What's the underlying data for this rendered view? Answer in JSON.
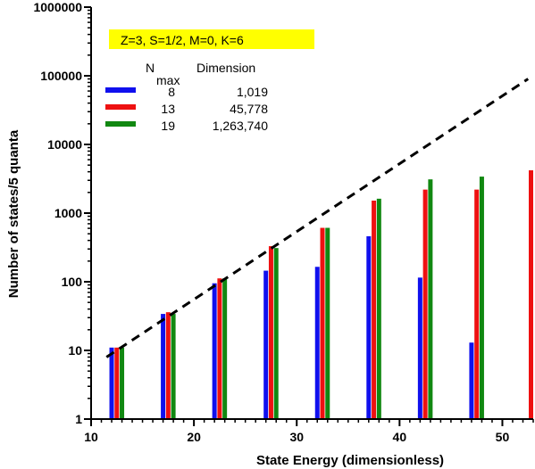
{
  "chart_data": {
    "type": "bar",
    "title": "Z=3, S=1/2, M=0, K=6",
    "title_box_color": "#ffff00",
    "xlabel": "State Energy (dimensionless)",
    "ylabel": "Number of states/5 quanta",
    "xlim": [
      10,
      53
    ],
    "ylim": [
      1,
      1000000
    ],
    "yscale": "log",
    "grid": false,
    "x_ticks": [
      10,
      20,
      30,
      40,
      50
    ],
    "y_ticks": [
      1,
      10,
      100,
      1000,
      10000,
      100000,
      1000000
    ],
    "y_tick_labels": [
      "1",
      "10",
      "100",
      "1000",
      "10000",
      "100000",
      "1000000"
    ],
    "legend": {
      "placement": "top-left",
      "header_nmax": "N",
      "header_nmax_sub": "max",
      "header_dimension": "Dimension"
    },
    "series": [
      {
        "name": "8",
        "dimension": "1,019",
        "color": "#1010ee",
        "x": [
          12,
          17,
          22,
          27,
          32,
          37,
          42,
          47
        ],
        "values": [
          11,
          34,
          95,
          145,
          165,
          460,
          115,
          13
        ]
      },
      {
        "name": "13",
        "dimension": "45,778",
        "color": "#ee1111",
        "x": [
          12.5,
          17.5,
          22.5,
          27.5,
          32.5,
          37.5,
          42.5,
          47.5,
          53
        ],
        "values": [
          11,
          36,
          112,
          330,
          610,
          1520,
          2200,
          2200,
          4200
        ]
      },
      {
        "name": "19",
        "dimension": "1,263,740",
        "color": "#118811",
        "x": [
          13,
          18,
          23,
          28,
          33,
          38,
          43,
          48
        ],
        "values": [
          11,
          34,
          112,
          310,
          610,
          1620,
          3100,
          3400
        ]
      }
    ],
    "trend_line": {
      "style": "dashed",
      "color": "#000000",
      "x": [
        11.5,
        52.5
      ],
      "y": [
        8,
        90000
      ]
    }
  }
}
